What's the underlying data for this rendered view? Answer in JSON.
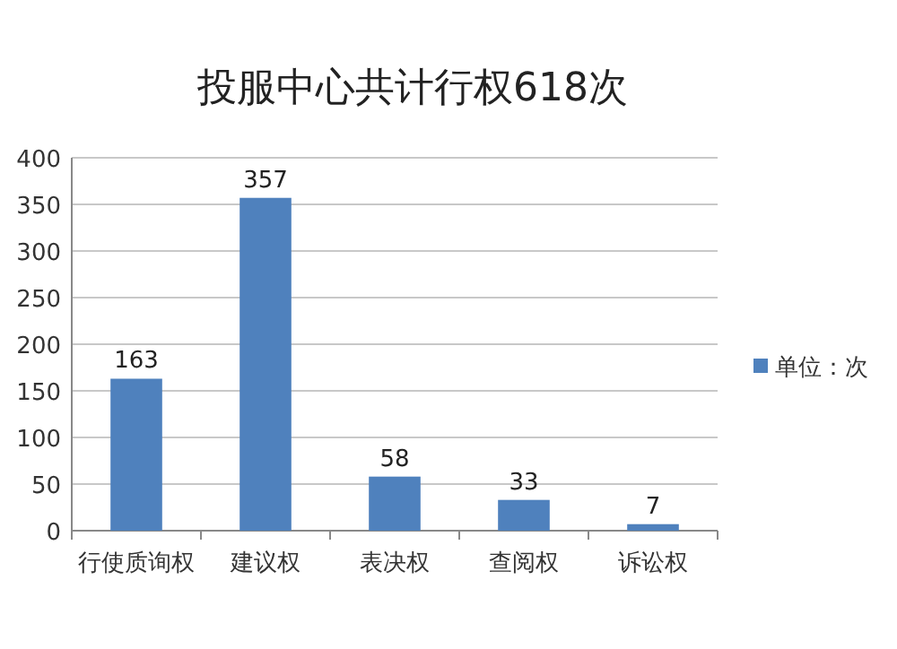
{
  "chart_data": {
    "type": "bar",
    "title": "投服中心共计行权618次",
    "categories": [
      "行使质询权",
      "建议权",
      "表决权",
      "查阅权",
      "诉讼权"
    ],
    "series": [
      {
        "name": "单位：次",
        "color": "#4f81bd",
        "values": [
          163,
          357,
          58,
          33,
          7
        ]
      }
    ],
    "ylim": [
      0,
      400
    ],
    "yticks": [
      0,
      50,
      100,
      150,
      200,
      250,
      300,
      350,
      400
    ],
    "grid": "y",
    "legend": "right",
    "data_labels": true
  }
}
